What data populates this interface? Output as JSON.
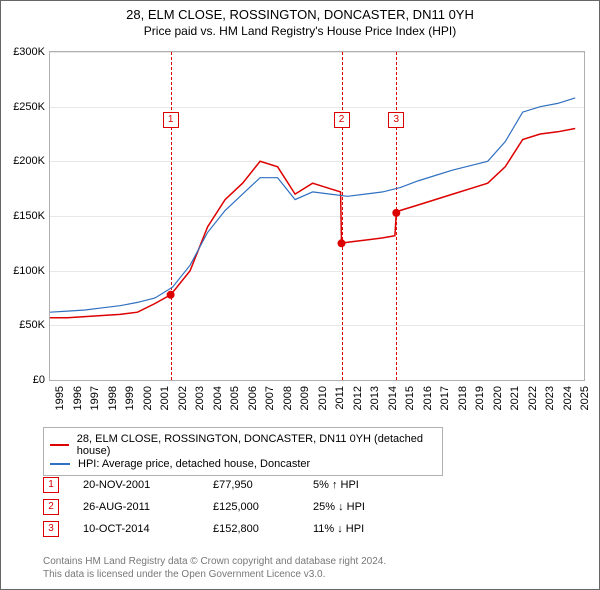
{
  "title_line1": "28, ELM CLOSE, ROSSINGTON, DONCASTER, DN11 0YH",
  "title_line2": "Price paid vs. HM Land Registry's House Price Index (HPI)",
  "chart": {
    "type": "line",
    "background_color": "#ffffff",
    "grid_color": "#e8e8e8",
    "border_color": "#b0b0b0",
    "x_start": 1995,
    "x_end": 2025.5,
    "x_ticks": [
      1995,
      1996,
      1997,
      1998,
      1999,
      2000,
      2001,
      2002,
      2003,
      2004,
      2005,
      2006,
      2007,
      2008,
      2009,
      2010,
      2011,
      2012,
      2013,
      2014,
      2015,
      2016,
      2017,
      2018,
      2019,
      2020,
      2021,
      2022,
      2023,
      2024,
      2025
    ],
    "y_min": 0,
    "y_max": 300000,
    "y_ticks": [
      0,
      50000,
      100000,
      150000,
      200000,
      250000,
      300000
    ],
    "y_tick_labels": [
      "£0",
      "£50K",
      "£100K",
      "£150K",
      "£200K",
      "£250K",
      "£300K"
    ],
    "label_fontsize": 11,
    "series": [
      {
        "name": "28, ELM CLOSE, ROSSINGTON, DONCASTER, DN11 0YH (detached house)",
        "color": "#dd0000",
        "line_width": 1.5,
        "points": [
          [
            1995,
            57000
          ],
          [
            1996,
            57000
          ],
          [
            1997,
            58000
          ],
          [
            1998,
            59000
          ],
          [
            1999,
            60000
          ],
          [
            2000,
            62000
          ],
          [
            2001,
            70000
          ],
          [
            2001.89,
            77950
          ],
          [
            2002,
            80000
          ],
          [
            2003,
            100000
          ],
          [
            2004,
            140000
          ],
          [
            2005,
            165000
          ],
          [
            2006,
            180000
          ],
          [
            2007,
            200000
          ],
          [
            2008,
            195000
          ],
          [
            2009,
            170000
          ],
          [
            2010,
            180000
          ],
          [
            2011,
            175000
          ],
          [
            2011.6,
            172000
          ],
          [
            2011.65,
            125000
          ],
          [
            2012,
            126000
          ],
          [
            2013,
            128000
          ],
          [
            2014,
            130000
          ],
          [
            2014.7,
            132000
          ],
          [
            2014.78,
            152800
          ],
          [
            2015,
            155000
          ],
          [
            2016,
            160000
          ],
          [
            2017,
            165000
          ],
          [
            2018,
            170000
          ],
          [
            2019,
            175000
          ],
          [
            2020,
            180000
          ],
          [
            2021,
            195000
          ],
          [
            2022,
            220000
          ],
          [
            2023,
            225000
          ],
          [
            2024,
            227000
          ],
          [
            2025,
            230000
          ]
        ]
      },
      {
        "name": "HPI: Average price, detached house, Doncaster",
        "color": "#3070c0",
        "line_width": 1.2,
        "points": [
          [
            1995,
            62000
          ],
          [
            1996,
            63000
          ],
          [
            1997,
            64000
          ],
          [
            1998,
            66000
          ],
          [
            1999,
            68000
          ],
          [
            2000,
            71000
          ],
          [
            2001,
            75000
          ],
          [
            2002,
            85000
          ],
          [
            2003,
            105000
          ],
          [
            2004,
            135000
          ],
          [
            2005,
            155000
          ],
          [
            2006,
            170000
          ],
          [
            2007,
            185000
          ],
          [
            2008,
            185000
          ],
          [
            2009,
            165000
          ],
          [
            2010,
            172000
          ],
          [
            2011,
            170000
          ],
          [
            2012,
            168000
          ],
          [
            2013,
            170000
          ],
          [
            2014,
            172000
          ],
          [
            2015,
            176000
          ],
          [
            2016,
            182000
          ],
          [
            2017,
            187000
          ],
          [
            2018,
            192000
          ],
          [
            2019,
            196000
          ],
          [
            2020,
            200000
          ],
          [
            2021,
            218000
          ],
          [
            2022,
            245000
          ],
          [
            2023,
            250000
          ],
          [
            2024,
            253000
          ],
          [
            2025,
            258000
          ]
        ]
      }
    ],
    "event_lines": [
      {
        "x": 2001.89,
        "color": "#dd0000",
        "label": "1",
        "marker_y": 245000
      },
      {
        "x": 2011.65,
        "color": "#dd0000",
        "label": "2",
        "marker_y": 245000
      },
      {
        "x": 2014.78,
        "color": "#dd0000",
        "label": "3",
        "marker_y": 245000
      }
    ],
    "sale_markers": [
      {
        "x": 2001.89,
        "y": 77950,
        "color": "#dd0000"
      },
      {
        "x": 2011.65,
        "y": 125000,
        "color": "#dd0000"
      },
      {
        "x": 2014.78,
        "y": 152800,
        "color": "#dd0000"
      }
    ]
  },
  "legend": {
    "items": [
      {
        "color": "#dd0000",
        "label": "28, ELM CLOSE, ROSSINGTON, DONCASTER, DN11 0YH (detached house)"
      },
      {
        "color": "#3070c0",
        "label": "HPI: Average price, detached house, Doncaster"
      }
    ]
  },
  "events": [
    {
      "num": "1",
      "date": "20-NOV-2001",
      "price": "£77,950",
      "diff": "5% ↑ HPI"
    },
    {
      "num": "2",
      "date": "26-AUG-2011",
      "price": "£125,000",
      "diff": "25% ↓ HPI"
    },
    {
      "num": "3",
      "date": "10-OCT-2014",
      "price": "£152,800",
      "diff": "11% ↓ HPI"
    }
  ],
  "footer_line1": "Contains HM Land Registry data © Crown copyright and database right 2024.",
  "footer_line2": "This data is licensed under the Open Government Licence v3.0."
}
